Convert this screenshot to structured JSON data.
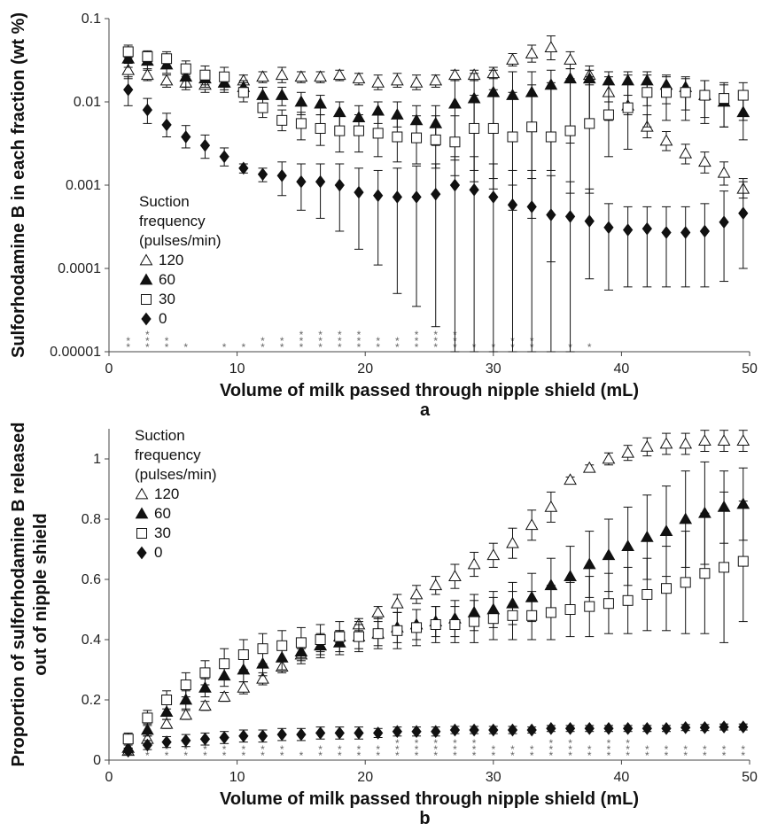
{
  "chart_data": [
    {
      "type": "scatter",
      "panel_label": "a",
      "xlabel": "Volume of milk passed through nipple shield (mL)",
      "ylabel": "Sulforhodamine B  in each fraction (wt %)",
      "xlim": [
        0,
        50
      ],
      "ylim": [
        1e-05,
        0.1
      ],
      "yscale": "log",
      "x_ticks": [
        "0",
        "10",
        "20",
        "30",
        "40",
        "50"
      ],
      "y_ticks": [
        "0.00001",
        "0.0001",
        "0.001",
        "0.01",
        "0.1"
      ],
      "legend": {
        "title": [
          "Suction",
          "frequency",
          "(pulses/min)"
        ],
        "placement": "left-middle"
      },
      "x": [
        1.5,
        3.0,
        4.5,
        6.0,
        7.5,
        9.0,
        10.5,
        12.0,
        13.5,
        15.0,
        16.5,
        18.0,
        19.5,
        21.0,
        22.5,
        24.0,
        25.5,
        27.0,
        28.5,
        30.0,
        31.5,
        33.0,
        34.5,
        36.0,
        37.5,
        39.0,
        40.5,
        42.0,
        43.5,
        45.0,
        46.5,
        48.0,
        49.5
      ],
      "series": [
        {
          "name": "120",
          "marker": "triangle-open",
          "values": [
            0.024,
            0.021,
            0.018,
            0.017,
            0.016,
            0.017,
            0.018,
            0.02,
            0.021,
            0.02,
            0.02,
            0.021,
            0.019,
            0.017,
            0.018,
            0.017,
            0.018,
            0.021,
            0.021,
            0.022,
            0.032,
            0.038,
            0.045,
            0.032,
            0.021,
            0.013,
            0.009,
            0.005,
            0.0034,
            0.0024,
            0.0019,
            0.0014,
            0.0009
          ],
          "err_hi": [
            0.029,
            0.024,
            0.021,
            0.021,
            0.02,
            0.021,
            0.021,
            0.023,
            0.026,
            0.023,
            0.023,
            0.024,
            0.022,
            0.021,
            0.022,
            0.021,
            0.021,
            0.024,
            0.024,
            0.026,
            0.038,
            0.048,
            0.062,
            0.04,
            0.027,
            0.017,
            0.012,
            0.007,
            0.0044,
            0.0031,
            0.0025,
            0.0019,
            0.0012
          ],
          "err_lo": [
            0.019,
            0.018,
            0.015,
            0.014,
            0.013,
            0.014,
            0.015,
            0.017,
            0.017,
            0.017,
            0.017,
            0.018,
            0.016,
            0.014,
            0.015,
            0.014,
            0.015,
            0.018,
            0.018,
            0.019,
            0.027,
            0.03,
            0.032,
            0.025,
            0.016,
            0.01,
            0.007,
            0.0037,
            0.0026,
            0.0018,
            0.0014,
            0.001,
            0.0007
          ]
        },
        {
          "name": "60",
          "marker": "triangle-filled",
          "values": [
            0.033,
            0.031,
            0.028,
            0.02,
            0.019,
            0.017,
            0.015,
            0.012,
            0.012,
            0.01,
            0.0095,
            0.0075,
            0.0065,
            0.0078,
            0.007,
            0.006,
            0.0055,
            0.0095,
            0.011,
            0.013,
            0.012,
            0.013,
            0.016,
            0.019,
            0.019,
            0.018,
            0.018,
            0.018,
            0.016,
            0.015,
            0.012,
            0.01,
            0.0075
          ],
          "err_hi": [
            0.04,
            0.037,
            0.034,
            0.025,
            0.023,
            0.021,
            0.018,
            0.015,
            0.015,
            0.013,
            0.012,
            0.01,
            0.009,
            0.01,
            0.01,
            0.009,
            0.009,
            0.018,
            0.022,
            0.024,
            0.023,
            0.023,
            0.024,
            0.025,
            0.024,
            0.023,
            0.023,
            0.023,
            0.021,
            0.02,
            0.018,
            0.016,
            0.013
          ],
          "err_lo": [
            0.026,
            0.025,
            0.022,
            0.015,
            0.015,
            0.013,
            0.012,
            0.009,
            0.009,
            0.007,
            0.007,
            0.005,
            0.0045,
            0.0055,
            0.005,
            0.004,
            0.003,
            0.002,
            0.0015,
            0.0012,
            0.001,
            0.0012,
            0.0015,
            0.0032,
            0.005,
            0.006,
            0.0075,
            0.009,
            0.0095,
            0.008,
            0.0065,
            0.005,
            0.0035
          ]
        },
        {
          "name": "30",
          "marker": "square-open",
          "values": [
            0.04,
            0.035,
            0.033,
            0.025,
            0.021,
            0.02,
            0.013,
            0.0085,
            0.006,
            0.0055,
            0.0048,
            0.0045,
            0.0045,
            0.0042,
            0.0038,
            0.0037,
            0.0035,
            0.0033,
            0.0048,
            0.0048,
            0.0038,
            0.005,
            0.0038,
            0.0045,
            0.0055,
            0.007,
            0.0085,
            0.013,
            0.013,
            0.013,
            0.012,
            0.011,
            0.012
          ],
          "err_hi": [
            0.048,
            0.041,
            0.04,
            0.031,
            0.027,
            0.026,
            0.017,
            0.011,
            0.008,
            0.0075,
            0.007,
            0.0072,
            0.007,
            0.0072,
            0.0065,
            0.0068,
            0.0068,
            0.0068,
            0.012,
            0.014,
            0.013,
            0.016,
            0.017,
            0.019,
            0.02,
            0.02,
            0.021,
            0.021,
            0.02,
            0.019,
            0.018,
            0.017,
            0.017
          ],
          "err_lo": [
            0.034,
            0.03,
            0.027,
            0.02,
            0.016,
            0.015,
            0.01,
            0.0065,
            0.0045,
            0.0035,
            0.003,
            0.0025,
            0.0025,
            0.0022,
            0.0019,
            0.0018,
            0.0016,
            0.0013,
            0.0011,
            0.0009,
            0.0005,
            0.0004,
            0.00012,
            0.0008,
            0.0008,
            0.0022,
            0.0027,
            0.005,
            0.006,
            0.006,
            0.0055,
            0.005,
            0.006
          ]
        },
        {
          "name": "0",
          "marker": "diamond-filled",
          "values": [
            0.014,
            0.008,
            0.0053,
            0.0038,
            0.003,
            0.0022,
            0.0016,
            0.00135,
            0.0013,
            0.0011,
            0.0011,
            0.001,
            0.00082,
            0.00075,
            0.00072,
            0.00072,
            0.00078,
            0.001,
            0.00088,
            0.00072,
            0.00058,
            0.00055,
            0.00044,
            0.00042,
            0.00037,
            0.00031,
            0.00029,
            0.0003,
            0.00027,
            0.00027,
            0.00028,
            0.00036,
            0.00046
          ],
          "err_hi": [
            0.02,
            0.011,
            0.0073,
            0.0052,
            0.004,
            0.0028,
            0.0018,
            0.0016,
            0.0019,
            0.0018,
            0.0018,
            0.0018,
            0.0016,
            0.0015,
            0.0016,
            0.0017,
            0.0018,
            0.0022,
            0.0022,
            0.0018,
            0.0015,
            0.0015,
            0.0013,
            0.0011,
            0.0009,
            0.0006,
            0.00055,
            0.00055,
            0.00055,
            0.00055,
            0.0006,
            0.00085,
            0.0011
          ],
          "err_lo": [
            0.009,
            0.0055,
            0.0038,
            0.0028,
            0.0021,
            0.0017,
            0.0014,
            0.0011,
            0.00075,
            0.0005,
            0.0004,
            0.00028,
            0.00017,
            0.00011,
            5e-05,
            3.5e-05,
            2e-05,
            1e-05,
            1e-05,
            1e-05,
            1e-05,
            1e-05,
            1e-05,
            1e-05,
            7.5e-05,
            5.5e-05,
            6e-05,
            6e-05,
            6e-05,
            6e-05,
            6e-05,
            7e-05,
            0.0001
          ]
        }
      ],
      "significance_marks": [
        {
          "x": 1.5,
          "text": "**"
        },
        {
          "x": 3.0,
          "text": "***"
        },
        {
          "x": 4.5,
          "text": "**"
        },
        {
          "x": 6.0,
          "text": "*"
        },
        {
          "x": 9.0,
          "text": "*"
        },
        {
          "x": 10.5,
          "text": "*"
        },
        {
          "x": 12.0,
          "text": "**"
        },
        {
          "x": 13.5,
          "text": "**"
        },
        {
          "x": 15.0,
          "text": "***"
        },
        {
          "x": 16.5,
          "text": "***"
        },
        {
          "x": 18.0,
          "text": "***"
        },
        {
          "x": 19.5,
          "text": "***"
        },
        {
          "x": 21.0,
          "text": "**"
        },
        {
          "x": 22.5,
          "text": "**"
        },
        {
          "x": 24.0,
          "text": "***"
        },
        {
          "x": 25.5,
          "text": "***"
        },
        {
          "x": 27.0,
          "text": "***"
        },
        {
          "x": 28.5,
          "text": "*"
        },
        {
          "x": 30.0,
          "text": "*"
        },
        {
          "x": 31.5,
          "text": "**"
        },
        {
          "x": 33.0,
          "text": "**"
        },
        {
          "x": 36.0,
          "text": "*"
        },
        {
          "x": 37.5,
          "text": "*"
        }
      ]
    },
    {
      "type": "scatter",
      "panel_label": "b",
      "xlabel": "Volume of milk passed through nipple shield (mL)",
      "ylabel": [
        "Proportion of sulforhodamine B released",
        "out of nipple shield"
      ],
      "xlim": [
        0,
        50
      ],
      "ylim": [
        0,
        1.1
      ],
      "x_ticks": [
        "0",
        "10",
        "20",
        "30",
        "40",
        "50"
      ],
      "y_ticks": [
        "0",
        "0.2",
        "0.4",
        "0.6",
        "0.8",
        "1"
      ],
      "legend": {
        "title": [
          "Suction",
          "frequency",
          "(pulses/min)"
        ],
        "placement": "top-left"
      },
      "x": [
        1.5,
        3.0,
        4.5,
        6.0,
        7.5,
        9.0,
        10.5,
        12.0,
        13.5,
        15.0,
        16.5,
        18.0,
        19.5,
        21.0,
        22.5,
        24.0,
        25.5,
        27.0,
        28.5,
        30.0,
        31.5,
        33.0,
        34.5,
        36.0,
        37.5,
        39.0,
        40.5,
        42.0,
        43.5,
        45.0,
        46.5,
        48.0,
        49.5
      ],
      "series": [
        {
          "name": "120",
          "marker": "triangle-open",
          "values": [
            0.03,
            0.07,
            0.12,
            0.15,
            0.18,
            0.21,
            0.24,
            0.27,
            0.31,
            0.35,
            0.38,
            0.41,
            0.45,
            0.49,
            0.52,
            0.55,
            0.58,
            0.61,
            0.65,
            0.68,
            0.72,
            0.78,
            0.84,
            0.93,
            0.97,
            1.0,
            1.02,
            1.04,
            1.05,
            1.05,
            1.06,
            1.06,
            1.06
          ],
          "err": [
            0.01,
            0.01,
            0.015,
            0.015,
            0.015,
            0.015,
            0.02,
            0.02,
            0.02,
            0.02,
            0.02,
            0.02,
            0.02,
            0.02,
            0.03,
            0.03,
            0.03,
            0.04,
            0.04,
            0.04,
            0.05,
            0.05,
            0.05,
            0.01,
            0.01,
            0.02,
            0.025,
            0.03,
            0.035,
            0.035,
            0.035,
            0.035,
            0.035
          ]
        },
        {
          "name": "60",
          "marker": "triangle-filled",
          "values": [
            0.04,
            0.1,
            0.16,
            0.2,
            0.24,
            0.28,
            0.3,
            0.32,
            0.34,
            0.36,
            0.38,
            0.39,
            0.41,
            0.42,
            0.44,
            0.45,
            0.46,
            0.47,
            0.49,
            0.5,
            0.52,
            0.54,
            0.58,
            0.61,
            0.65,
            0.68,
            0.71,
            0.74,
            0.76,
            0.8,
            0.82,
            0.84,
            0.85
          ],
          "err": [
            0.015,
            0.02,
            0.025,
            0.03,
            0.03,
            0.035,
            0.04,
            0.04,
            0.04,
            0.04,
            0.04,
            0.04,
            0.04,
            0.04,
            0.05,
            0.05,
            0.05,
            0.06,
            0.06,
            0.06,
            0.07,
            0.08,
            0.09,
            0.1,
            0.11,
            0.12,
            0.13,
            0.14,
            0.15,
            0.16,
            0.17,
            0.12,
            0.12
          ]
        },
        {
          "name": "30",
          "marker": "square-open",
          "values": [
            0.07,
            0.14,
            0.2,
            0.25,
            0.29,
            0.32,
            0.35,
            0.37,
            0.38,
            0.39,
            0.4,
            0.41,
            0.41,
            0.42,
            0.43,
            0.44,
            0.45,
            0.45,
            0.46,
            0.47,
            0.48,
            0.48,
            0.49,
            0.5,
            0.51,
            0.52,
            0.53,
            0.55,
            0.57,
            0.59,
            0.62,
            0.64,
            0.66
          ],
          "err": [
            0.02,
            0.025,
            0.03,
            0.04,
            0.04,
            0.05,
            0.05,
            0.05,
            0.05,
            0.05,
            0.05,
            0.05,
            0.05,
            0.05,
            0.06,
            0.06,
            0.06,
            0.06,
            0.07,
            0.07,
            0.08,
            0.08,
            0.09,
            0.09,
            0.1,
            0.1,
            0.11,
            0.12,
            0.14,
            0.17,
            0.2,
            0.25,
            0.2
          ]
        },
        {
          "name": "0",
          "marker": "diamond-filled",
          "values": [
            0.03,
            0.05,
            0.06,
            0.065,
            0.07,
            0.075,
            0.08,
            0.08,
            0.085,
            0.085,
            0.09,
            0.09,
            0.09,
            0.09,
            0.095,
            0.095,
            0.095,
            0.1,
            0.1,
            0.1,
            0.1,
            0.1,
            0.105,
            0.105,
            0.105,
            0.105,
            0.105,
            0.105,
            0.105,
            0.108,
            0.108,
            0.11,
            0.11
          ],
          "err": [
            0.01,
            0.015,
            0.018,
            0.02,
            0.02,
            0.02,
            0.02,
            0.02,
            0.02,
            0.02,
            0.02,
            0.02,
            0.02,
            0.015,
            0.015,
            0.015,
            0.015,
            0.012,
            0.012,
            0.012,
            0.012,
            0.01,
            0.01,
            0.01,
            0.01,
            0.01,
            0.01,
            0.01,
            0.01,
            0.01,
            0.01,
            0.01,
            0.01
          ]
        }
      ],
      "significance_marks": [
        {
          "x": 1.5,
          "text": "*"
        },
        {
          "x": 3.0,
          "text": "**"
        },
        {
          "x": 4.5,
          "text": "**"
        },
        {
          "x": 6.0,
          "text": "**"
        },
        {
          "x": 7.5,
          "text": "**"
        },
        {
          "x": 9.0,
          "text": "**"
        },
        {
          "x": 10.5,
          "text": "**"
        },
        {
          "x": 12.0,
          "text": "**"
        },
        {
          "x": 13.5,
          "text": "**"
        },
        {
          "x": 15.0,
          "text": "*"
        },
        {
          "x": 16.5,
          "text": "**"
        },
        {
          "x": 18.0,
          "text": "**"
        },
        {
          "x": 19.5,
          "text": "**"
        },
        {
          "x": 21.0,
          "text": "**"
        },
        {
          "x": 22.5,
          "text": "***"
        },
        {
          "x": 24.0,
          "text": "***"
        },
        {
          "x": 25.5,
          "text": "***"
        },
        {
          "x": 27.0,
          "text": "***"
        },
        {
          "x": 28.5,
          "text": "***"
        },
        {
          "x": 30.0,
          "text": "**"
        },
        {
          "x": 31.5,
          "text": "**"
        },
        {
          "x": 33.0,
          "text": "**"
        },
        {
          "x": 34.5,
          "text": "***"
        },
        {
          "x": 36.0,
          "text": "***"
        },
        {
          "x": 37.5,
          "text": "**"
        },
        {
          "x": 39.0,
          "text": "***"
        },
        {
          "x": 40.5,
          "text": "***"
        },
        {
          "x": 42.0,
          "text": "**"
        },
        {
          "x": 43.5,
          "text": "**"
        },
        {
          "x": 45.0,
          "text": "**"
        },
        {
          "x": 46.5,
          "text": "**"
        },
        {
          "x": 48.0,
          "text": "**"
        },
        {
          "x": 49.5,
          "text": "**"
        }
      ]
    }
  ]
}
